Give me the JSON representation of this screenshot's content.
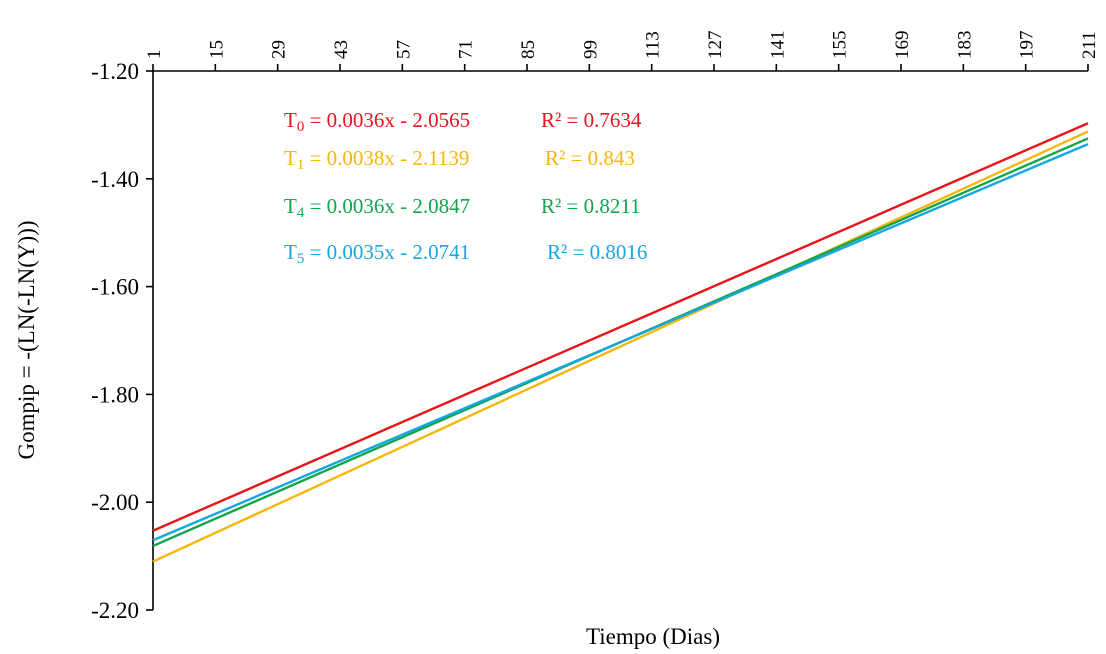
{
  "chart_data": {
    "type": "line",
    "xlabel": "Tiempo (Dias)",
    "ylabel": "Gompip = -(LN(-LN(Y)))",
    "x_ticks": [
      1,
      15,
      29,
      43,
      57,
      71,
      85,
      99,
      113,
      127,
      141,
      155,
      169,
      183,
      197,
      211
    ],
    "x_tick_labels": [
      "1",
      "15",
      "29",
      "43",
      "57",
      "71",
      "85",
      "99",
      "113",
      "127",
      "141",
      "155",
      "169",
      "183",
      "197",
      "211"
    ],
    "xlim": [
      1,
      211
    ],
    "y_ticks": [
      -1.2,
      -1.4,
      -1.6,
      -1.8,
      -2.0,
      -2.2
    ],
    "y_tick_labels": [
      "-1.20",
      "-1.40",
      "-1.60",
      "-1.80",
      "-2.00",
      "-2.20"
    ],
    "ylim": [
      -2.2,
      -1.2
    ],
    "x_axis_position": "top",
    "grid": false,
    "series": [
      {
        "name": "T0",
        "color": "#e8141b",
        "slope": 0.0036,
        "intercept": -2.0565,
        "equation": {
          "sym": "T",
          "sub": "0",
          "rest": " = 0.0036x - 2.0565",
          "r2": "R² = 0.7634"
        }
      },
      {
        "name": "T1",
        "color": "#f5b70d",
        "slope": 0.0038,
        "intercept": -2.1139,
        "equation": {
          "sym": "T",
          "sub": "1",
          "rest": " = 0.0038x - 2.1139",
          "r2": "R² = 0.843"
        }
      },
      {
        "name": "T4",
        "color": "#12a54a",
        "slope": 0.0036,
        "intercept": -2.0847,
        "equation": {
          "sym": "T",
          "sub": "4",
          "rest": " = 0.0036x - 2.0847",
          "r2": "R² = 0.8211"
        }
      },
      {
        "name": "T5",
        "color": "#17a6e0",
        "slope": 0.0035,
        "intercept": -2.0741,
        "equation": {
          "sym": "T",
          "sub": "5",
          "rest": " = 0.0035x - 2.0741",
          "r2": "R² = 0.8016"
        }
      }
    ]
  }
}
